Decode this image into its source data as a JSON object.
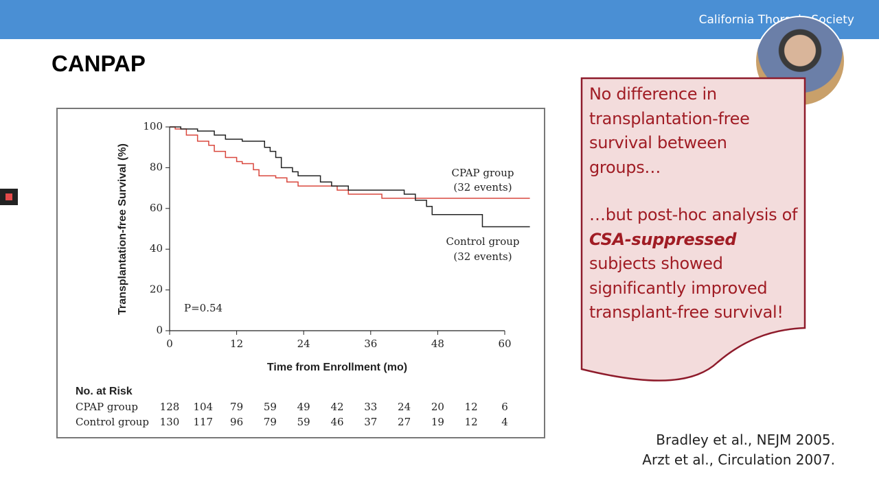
{
  "header": {
    "org": "California Thoracic Society"
  },
  "slide": {
    "title": "CANPAP"
  },
  "chart_data": {
    "type": "step",
    "ylabel": "Transplantation-free Survival (%)",
    "xlabel": "Time from Enrollment (mo)",
    "xlim": [
      0,
      60
    ],
    "xticks": [
      0,
      12,
      24,
      36,
      48,
      60
    ],
    "ylim": [
      0,
      100
    ],
    "yticks": [
      0,
      20,
      40,
      60,
      80,
      100
    ],
    "series": [
      {
        "name": "CPAP group",
        "note": "(32 events)",
        "color": "#d9473d",
        "x": [
          0,
          1,
          3,
          5,
          7,
          8,
          10,
          12,
          13,
          15,
          16,
          19,
          21,
          23,
          27,
          30,
          32,
          38,
          64.5
        ],
        "values": [
          100,
          99,
          96,
          93,
          91,
          88,
          85,
          83,
          82,
          79,
          76,
          75,
          73,
          71,
          71,
          69,
          67,
          65,
          65
        ]
      },
      {
        "name": "Control group",
        "note": "(32 events)",
        "color": "#222222",
        "x": [
          0,
          2,
          5,
          8,
          10,
          13,
          17,
          18,
          19,
          20,
          22,
          23,
          27,
          29,
          32,
          42,
          44,
          46,
          47,
          56,
          64.5
        ],
        "values": [
          100,
          99,
          98,
          96,
          94,
          93,
          90,
          88,
          85,
          80,
          78,
          76,
          73,
          71,
          69,
          67,
          64,
          61,
          57,
          51,
          51
        ]
      }
    ],
    "annotation": "P=0.54",
    "at_risk": {
      "title": "No. at Risk",
      "rows": [
        {
          "name": "CPAP group",
          "values": [
            128,
            104,
            79,
            59,
            49,
            42,
            33,
            24,
            20,
            12,
            6
          ]
        },
        {
          "name": "Control group",
          "values": [
            130,
            117,
            96,
            79,
            59,
            46,
            37,
            27,
            19,
            12,
            4
          ]
        }
      ]
    }
  },
  "callout": {
    "paragraphs": [
      [
        "No difference in transplantation-free survival between groups…"
      ],
      [
        "…but post-hoc analysis of ",
        "CSA-suppressed",
        " subjects showed significantly improved transplant-free survival!"
      ]
    ]
  },
  "citations": [
    "Bradley et al., NEJM 2005.",
    "Arzt et al., Circulation 2007."
  ]
}
